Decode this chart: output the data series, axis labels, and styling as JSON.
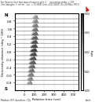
{
  "title_line1": "For Source-time functions of source with 1     assuming strike = 159",
  "title_line2": "2tri triangles + tri+tri   Lat. = 13.6681 Lon.=103.0556  Zi=30 Mw= M7.0",
  "xlabel": "Relative time (sec)",
  "ylabel": "Directivity distance (deg * 100)",
  "colorbar_label": "s/deg",
  "median_label": "Median STF duration: 70s",
  "bottom_right_label": "km/s",
  "n_label": "N",
  "s_label": "S",
  "azimuth_ticks": [
    -0.8,
    -0.6,
    -0.4,
    -0.2,
    0.0,
    0.2,
    0.4,
    0.6,
    0.8
  ],
  "time_ticks": [
    0,
    100,
    200,
    300,
    400,
    500
  ],
  "ylim": [
    -1.0,
    1.0
  ],
  "xlim": [
    -100,
    550
  ],
  "bg_color": "#ffffff",
  "colorbar_ticks": [
    0.0,
    0.01,
    0.02,
    0.03,
    0.04
  ],
  "colorbar_tick_labels": [
    "0.00",
    "0.01",
    "0.02",
    "0.03",
    "0.04"
  ],
  "rose_color": "#cc0000",
  "n_waveforms": 17,
  "strike": 159,
  "median_duration": 70
}
